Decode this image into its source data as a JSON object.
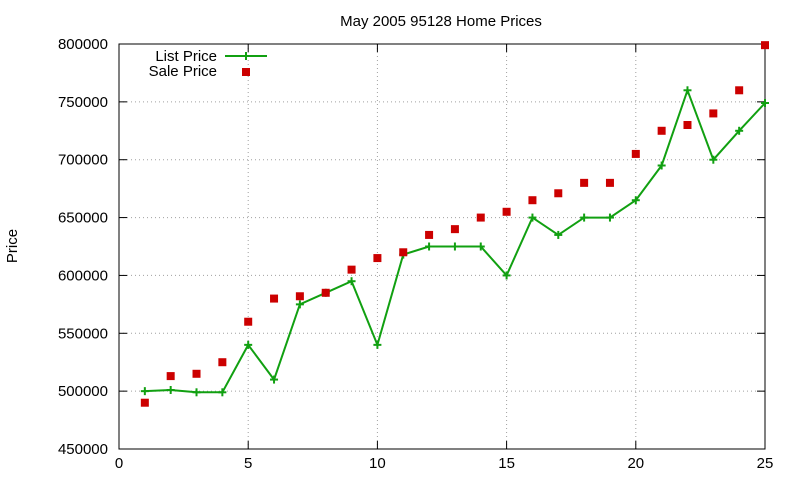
{
  "chart_data": {
    "type": "line",
    "title": "May 2005 95128 Home Prices",
    "xlabel": "",
    "ylabel": "Price",
    "xlim": [
      0,
      25
    ],
    "ylim": [
      450000,
      800000
    ],
    "x_ticks": [
      0,
      5,
      10,
      15,
      20,
      25
    ],
    "y_ticks": [
      450000,
      500000,
      550000,
      600000,
      650000,
      700000,
      750000,
      800000
    ],
    "grid": true,
    "legend_position": "top-left",
    "series": [
      {
        "name": "List Price",
        "style": "line-with-plus-markers",
        "color": "#11a011",
        "x": [
          1,
          2,
          3,
          4,
          5,
          6,
          7,
          8,
          9,
          10,
          11,
          12,
          13,
          14,
          15,
          16,
          17,
          18,
          19,
          20,
          21,
          22,
          23,
          24,
          25
        ],
        "y": [
          500000,
          501000,
          499000,
          499000,
          540000,
          510000,
          575000,
          585000,
          595000,
          540000,
          618000,
          625000,
          625000,
          625000,
          600000,
          650000,
          635000,
          650000,
          650000,
          665000,
          695000,
          760000,
          700000,
          725000,
          749000
        ]
      },
      {
        "name": "Sale Price",
        "style": "square-markers",
        "color": "#cc0000",
        "x": [
          1,
          2,
          3,
          4,
          5,
          6,
          7,
          8,
          9,
          10,
          11,
          12,
          13,
          14,
          15,
          16,
          17,
          18,
          19,
          20,
          21,
          22,
          23,
          24,
          25
        ],
        "y": [
          490000,
          513000,
          515000,
          525000,
          560000,
          580000,
          582000,
          585000,
          605000,
          615000,
          620000,
          635000,
          640000,
          650000,
          655000,
          665000,
          671000,
          680000,
          680000,
          705000,
          725000,
          730000,
          740000,
          760000,
          799000
        ]
      }
    ]
  }
}
